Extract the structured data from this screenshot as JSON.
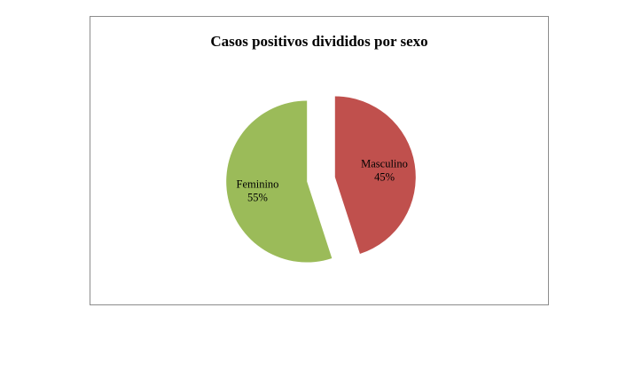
{
  "chart_data": {
    "type": "pie",
    "title": "Casos positivos divididos por sexo",
    "slices": [
      {
        "label": "Masculino",
        "value": 45,
        "percent_label": "45%",
        "color": "#c0504d"
      },
      {
        "label": "Feminino",
        "value": 55,
        "percent_label": "55%",
        "color": "#9bbb59"
      }
    ],
    "exploded": true,
    "legend": "none"
  }
}
